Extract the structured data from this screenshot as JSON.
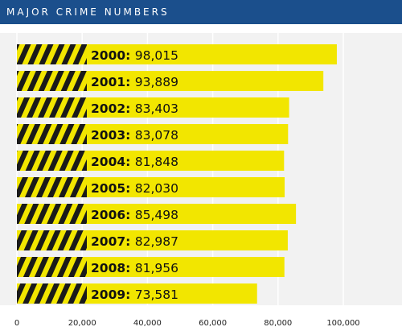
{
  "header": {
    "title": "MAJOR CRIME NUMBERS"
  },
  "colors": {
    "header_bg": "#1b4f8c",
    "bar_fill": "#f2e600",
    "stripe_dark": "#1a1a1a",
    "plot_bg": "#f2f2f2"
  },
  "chart_data": {
    "type": "bar",
    "orientation": "horizontal",
    "title": "MAJOR CRIME NUMBERS",
    "categories": [
      "2000",
      "2001",
      "2002",
      "2003",
      "2004",
      "2005",
      "2006",
      "2007",
      "2008",
      "2009"
    ],
    "values": [
      98015,
      93889,
      83403,
      83078,
      81848,
      82030,
      85498,
      82987,
      81956,
      73581
    ],
    "value_labels": [
      "98,015",
      "93,889",
      "83,403",
      "83,078",
      "81,848",
      "82,030",
      "85,498",
      "82,987",
      "81,956",
      "73,581"
    ],
    "xlim": [
      0,
      100000
    ],
    "xticks": [
      0,
      20000,
      40000,
      60000,
      80000,
      100000
    ],
    "xtick_labels": [
      "0",
      "20,000",
      "40,000",
      "60,000",
      "80,000",
      "100,000"
    ],
    "grid": "vertical",
    "xlabel": "",
    "ylabel": ""
  }
}
